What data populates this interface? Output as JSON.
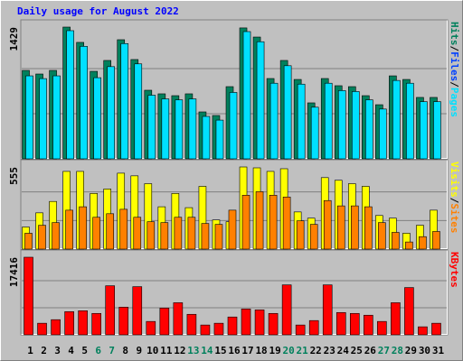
{
  "chart_data": {
    "type": "bar",
    "title": "Daily usage for August 2022",
    "title_color": "#0000ff",
    "separator": "/",
    "categories": [
      "1",
      "2",
      "3",
      "4",
      "5",
      "6",
      "7",
      "8",
      "9",
      "10",
      "11",
      "12",
      "13",
      "14",
      "15",
      "16",
      "17",
      "18",
      "19",
      "20",
      "21",
      "22",
      "23",
      "24",
      "25",
      "26",
      "27",
      "28",
      "29",
      "30",
      "31"
    ],
    "category_colors": [
      "#000000",
      "#000000",
      "#000000",
      "#000000",
      "#000000",
      "#00805c",
      "#00805c",
      "#000000",
      "#000000",
      "#000000",
      "#000000",
      "#000000",
      "#00805c",
      "#00805c",
      "#000000",
      "#000000",
      "#000000",
      "#000000",
      "#000000",
      "#00805c",
      "#00805c",
      "#000000",
      "#000000",
      "#000000",
      "#000000",
      "#000000",
      "#00805c",
      "#00805c",
      "#000000",
      "#000000",
      "#000000"
    ],
    "panels": [
      {
        "ylim": [
          0,
          1429
        ],
        "yticks": [
          1429
        ],
        "series": [
          {
            "name": "Hits",
            "color": "#00805c",
            "values": [
              959,
              920,
              959,
              1429,
              1263,
              949,
              1067,
              1292,
              1077,
              744,
              705,
              685,
              705,
              509,
              470,
              783,
              1420,
              1321,
              871,
              1067,
              861,
              607,
              871,
              793,
              783,
              685,
              587,
              900,
              861,
              666,
              666
            ]
          },
          {
            "name": "Files",
            "color": "#0040ff",
            "values": [
              380,
              360,
              380,
              560,
              500,
              380,
              420,
              520,
              420,
              300,
              280,
              270,
              280,
              200,
              190,
              310,
              560,
              520,
              350,
              420,
              340,
              240,
              350,
              310,
              310,
              270,
              230,
              360,
              340,
              260,
              260
            ]
          },
          {
            "name": "Pages",
            "color": "#00e0ff",
            "values": [
              900,
              870,
              900,
              1390,
              1220,
              880,
              1000,
              1250,
              1030,
              690,
              650,
              640,
              650,
              460,
              420,
              720,
              1380,
              1270,
              820,
              1010,
              810,
              560,
              820,
              740,
              730,
              640,
              540,
              850,
              820,
              620,
              620
            ]
          }
        ]
      },
      {
        "ylim": [
          0,
          555
        ],
        "yticks": [
          555
        ],
        "series": [
          {
            "name": "Visits",
            "color": "#ffff00",
            "values": [
              149,
              245,
              322,
              525,
              525,
              376,
              406,
              513,
              495,
              442,
              286,
              376,
              280,
              424,
              197,
              185,
              555,
              549,
              525,
              543,
              251,
              209,
              483,
              465,
              442,
              424,
              227,
              209,
              107,
              161,
              263
            ]
          },
          {
            "name": "Sites",
            "color": "#ff8000",
            "values": [
              107,
              161,
              179,
              263,
              286,
              215,
              239,
              269,
              215,
              185,
              179,
              215,
              215,
              173,
              167,
              263,
              364,
              388,
              364,
              352,
              191,
              167,
              328,
              292,
              292,
              286,
              179,
              113,
              48,
              84,
              119
            ]
          }
        ]
      },
      {
        "ylim": [
          0,
          17416
        ],
        "yticks": [
          17416
        ],
        "series": [
          {
            "name": "KBytes",
            "color": "#ff0000",
            "values": [
              17416,
              2602,
              3403,
              5205,
              5405,
              4804,
              11010,
              6206,
              10810,
              3003,
              6006,
              7207,
              4604,
              2202,
              2602,
              4004,
              5805,
              5605,
              4804,
              11210,
              2202,
              3203,
              11210,
              5005,
              4804,
              4404,
              3003,
              7207,
              10610,
              1802,
              2602
            ]
          }
        ]
      }
    ]
  }
}
